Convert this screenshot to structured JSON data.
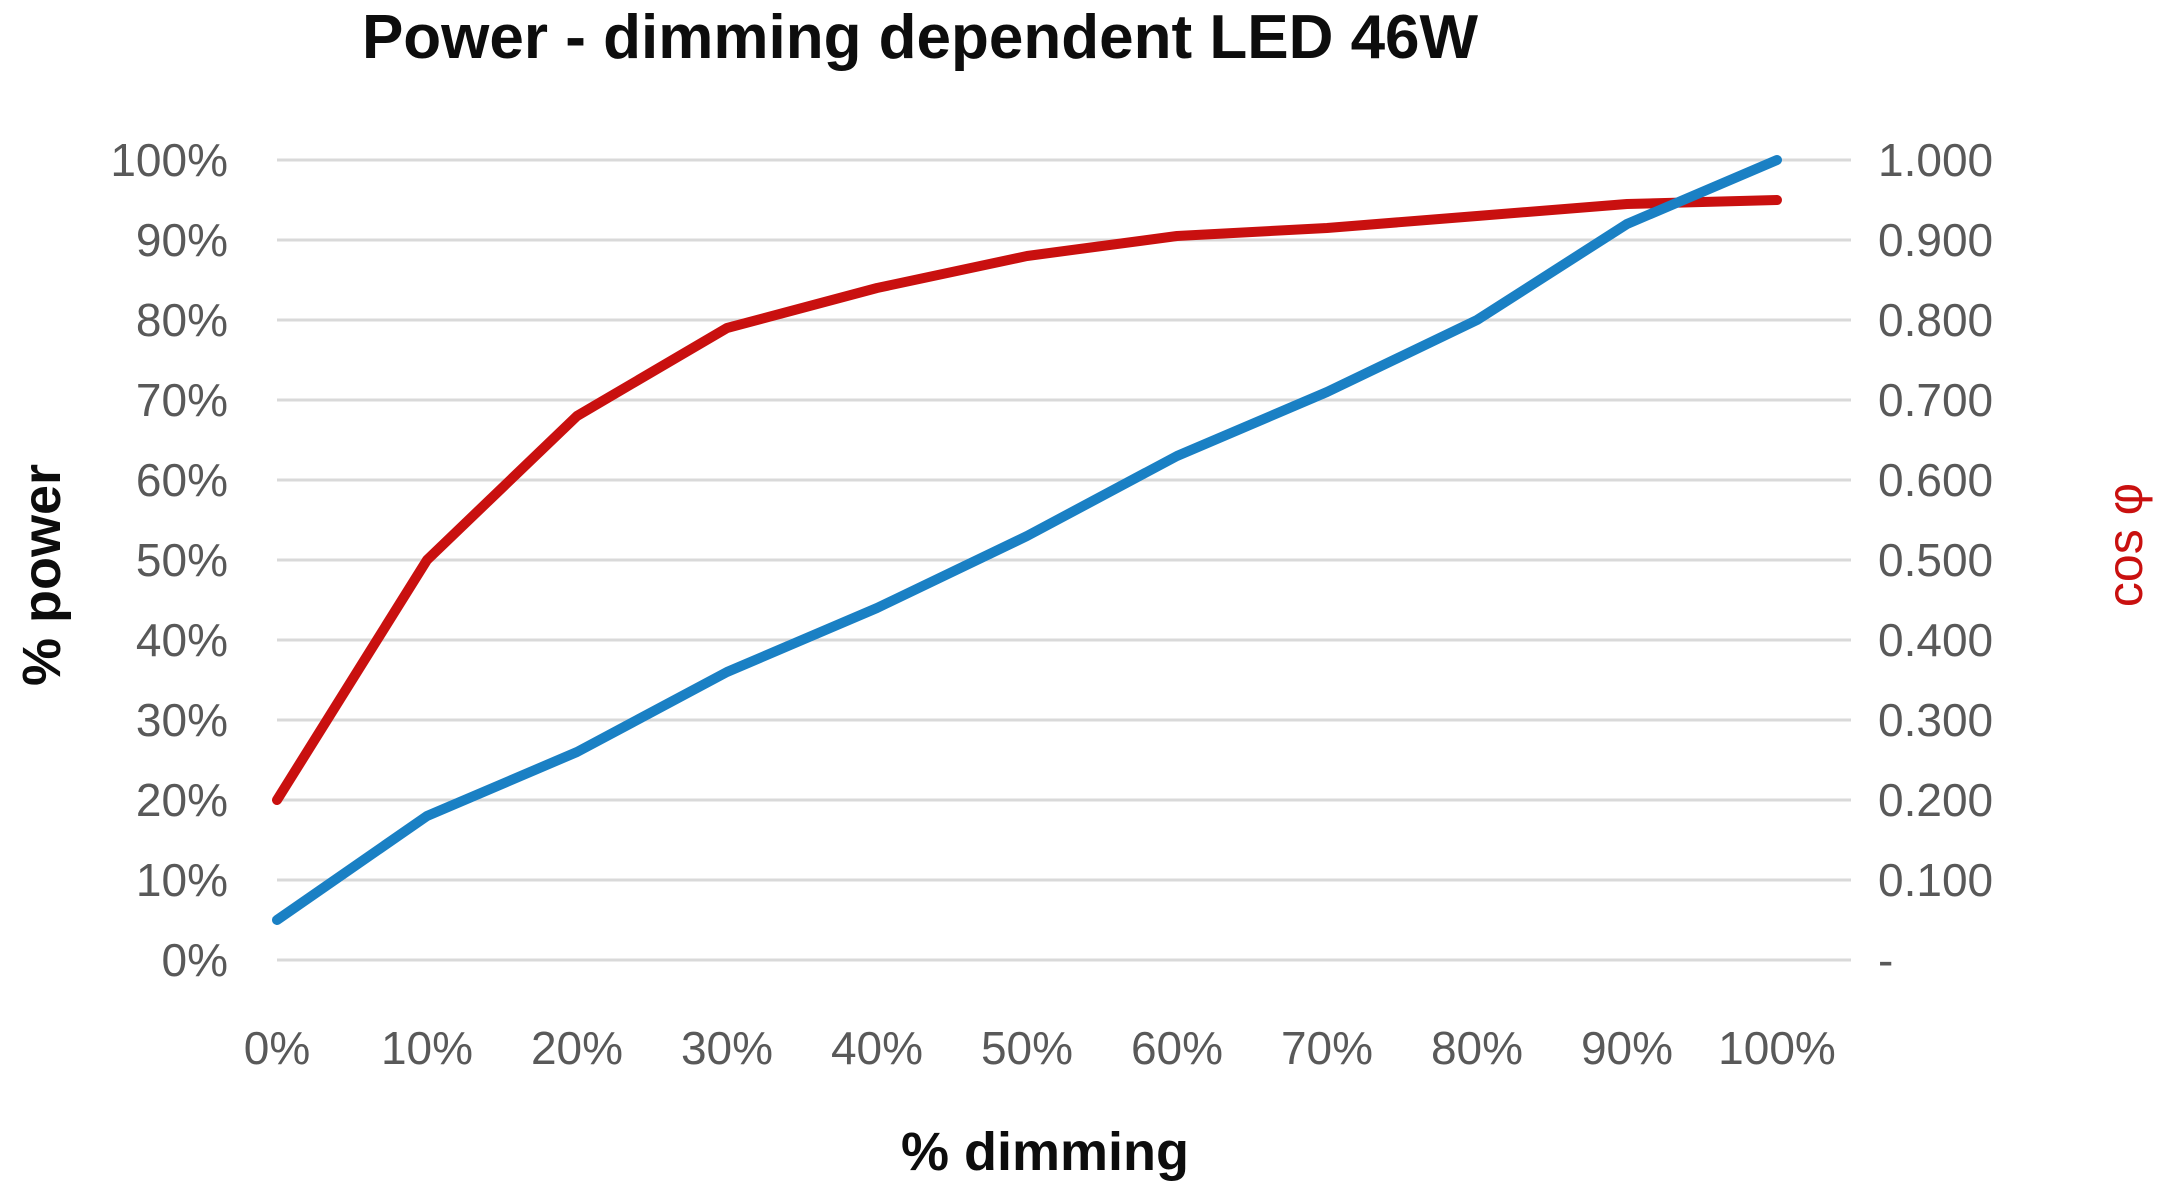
{
  "title": "Power - dimming dependent LED 46W",
  "colors": {
    "power_line": "#1a80c4",
    "cos_phi_line": "#c9100f",
    "gridline": "#d9d9d9",
    "tick_text": "#595959",
    "title_text": "#0d0d0d"
  },
  "chart_data": {
    "type": "line",
    "title": "Power - dimming dependent LED 46W",
    "xlabel": "% dimming",
    "ylabel_left": "% power",
    "ylabel_right": "cos φ",
    "x": [
      0,
      10,
      20,
      30,
      40,
      50,
      60,
      70,
      80,
      90,
      100
    ],
    "x_tick_labels": [
      "0%",
      "10%",
      "20%",
      "30%",
      "40%",
      "50%",
      "60%",
      "70%",
      "80%",
      "90%",
      "100%"
    ],
    "y_left_ticks": [
      "100%",
      "90%",
      "80%",
      "70%",
      "60%",
      "50%",
      "40%",
      "30%",
      "20%",
      "10%",
      "0%"
    ],
    "y_right_ticks": [
      "1.000",
      "0.900",
      "0.800",
      "0.700",
      "0.600",
      "0.500",
      "0.400",
      "0.300",
      "0.200",
      "0.100",
      "-"
    ],
    "y_left_range": [
      0,
      100
    ],
    "y_right_range": [
      0,
      1
    ],
    "grid": true,
    "legend": false,
    "series": [
      {
        "name": "cos φ",
        "axis": "right",
        "color": "#c9100f",
        "values": [
          0.2,
          0.5,
          0.68,
          0.79,
          0.84,
          0.88,
          0.905,
          0.915,
          0.93,
          0.945,
          0.95
        ]
      },
      {
        "name": "% power",
        "axis": "left",
        "color": "#1a80c4",
        "values": [
          5,
          18,
          26,
          36,
          44,
          53,
          63,
          71,
          80,
          92,
          100
        ]
      }
    ]
  }
}
